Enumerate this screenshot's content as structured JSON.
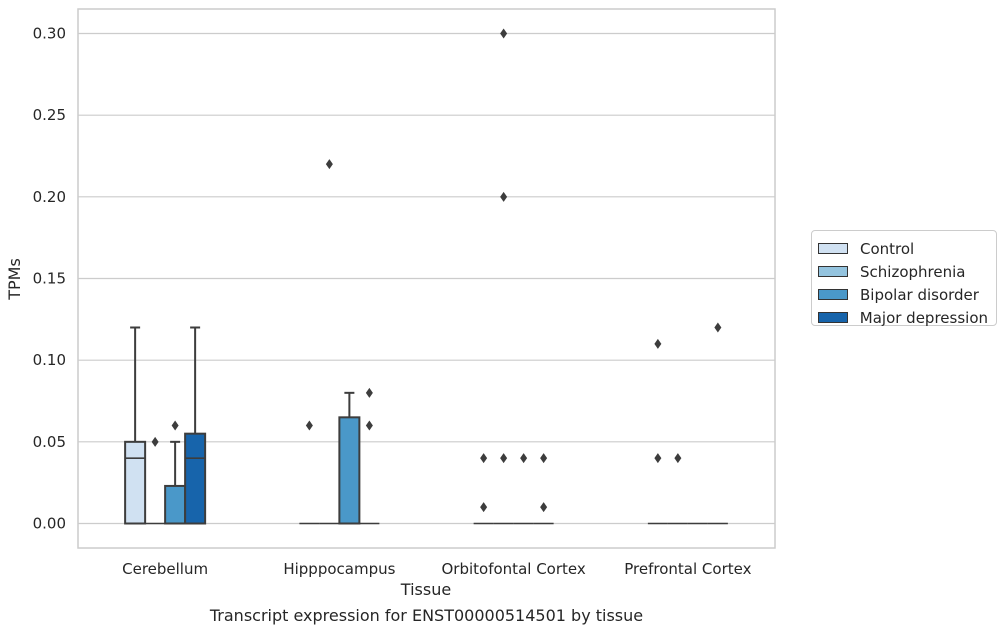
{
  "chart_data": {
    "type": "box",
    "xlabel": "Tissue",
    "ylabel": "TPMs",
    "ylim": [
      -0.015,
      0.315
    ],
    "yticks": [
      "0.00",
      "0.05",
      "0.10",
      "0.15",
      "0.20",
      "0.25",
      "0.30"
    ],
    "ytick_values": [
      0,
      0.05,
      0.1,
      0.15,
      0.2,
      0.25,
      0.3
    ],
    "categories": [
      "Cerebellum",
      "Hipppocampus",
      "Orbitofontal Cortex",
      "Prefrontal Cortex"
    ],
    "grid": "horizontal",
    "legend_position": "right",
    "series": [
      {
        "name": "Control",
        "color": "#d0e1f2",
        "boxes": [
          {
            "q1": 0.0,
            "median": 0.04,
            "q3": 0.05,
            "whisker_low": 0.0,
            "whisker_high": 0.12,
            "outliers": []
          },
          {
            "q1": 0.0,
            "median": 0.0,
            "q3": 0.0,
            "whisker_low": 0.0,
            "whisker_high": 0.0,
            "outliers": [
              0.06
            ]
          },
          {
            "q1": 0.0,
            "median": 0.0,
            "q3": 0.0,
            "whisker_low": 0.0,
            "whisker_high": 0.0,
            "outliers": [
              0.04,
              0.01
            ]
          },
          {
            "q1": 0.0,
            "median": 0.0,
            "q3": 0.0,
            "whisker_low": 0.0,
            "whisker_high": 0.0,
            "outliers": [
              0.11,
              0.04
            ]
          }
        ]
      },
      {
        "name": "Schizophrenia",
        "color": "#94c4df",
        "boxes": [
          {
            "q1": 0.0,
            "median": 0.0,
            "q3": 0.0,
            "whisker_low": 0.0,
            "whisker_high": 0.0,
            "outliers": [
              0.05
            ]
          },
          {
            "q1": 0.0,
            "median": 0.0,
            "q3": 0.0,
            "whisker_low": 0.0,
            "whisker_high": 0.0,
            "outliers": [
              0.22
            ]
          },
          {
            "q1": 0.0,
            "median": 0.0,
            "q3": 0.0,
            "whisker_low": 0.0,
            "whisker_high": 0.0,
            "outliers": [
              0.3,
              0.2,
              0.04
            ]
          },
          {
            "q1": 0.0,
            "median": 0.0,
            "q3": 0.0,
            "whisker_low": 0.0,
            "whisker_high": 0.0,
            "outliers": [
              0.04
            ]
          }
        ]
      },
      {
        "name": "Bipolar disorder",
        "color": "#4a98c9",
        "boxes": [
          {
            "q1": 0.0,
            "median": 0.0,
            "q3": 0.023,
            "whisker_low": 0.0,
            "whisker_high": 0.05,
            "outliers": [
              0.06
            ]
          },
          {
            "q1": 0.0,
            "median": 0.0,
            "q3": 0.065,
            "whisker_low": 0.0,
            "whisker_high": 0.08,
            "outliers": []
          },
          {
            "q1": 0.0,
            "median": 0.0,
            "q3": 0.0,
            "whisker_low": 0.0,
            "whisker_high": 0.0,
            "outliers": [
              0.04
            ]
          },
          {
            "q1": 0.0,
            "median": 0.0,
            "q3": 0.0,
            "whisker_low": 0.0,
            "whisker_high": 0.0,
            "outliers": []
          }
        ]
      },
      {
        "name": "Major depression",
        "color": "#1764ab",
        "boxes": [
          {
            "q1": 0.0,
            "median": 0.04,
            "q3": 0.055,
            "whisker_low": 0.0,
            "whisker_high": 0.12,
            "outliers": []
          },
          {
            "q1": 0.0,
            "median": 0.0,
            "q3": 0.0,
            "whisker_low": 0.0,
            "whisker_high": 0.0,
            "outliers": [
              0.08,
              0.06
            ]
          },
          {
            "q1": 0.0,
            "median": 0.0,
            "q3": 0.0,
            "whisker_low": 0.0,
            "whisker_high": 0.0,
            "outliers": [
              0.04,
              0.01
            ]
          },
          {
            "q1": 0.0,
            "median": 0.0,
            "q3": 0.0,
            "whisker_low": 0.0,
            "whisker_high": 0.0,
            "outliers": [
              0.12
            ]
          }
        ]
      }
    ]
  },
  "caption": "Transcript expression for ENST00000514501 by tissue"
}
